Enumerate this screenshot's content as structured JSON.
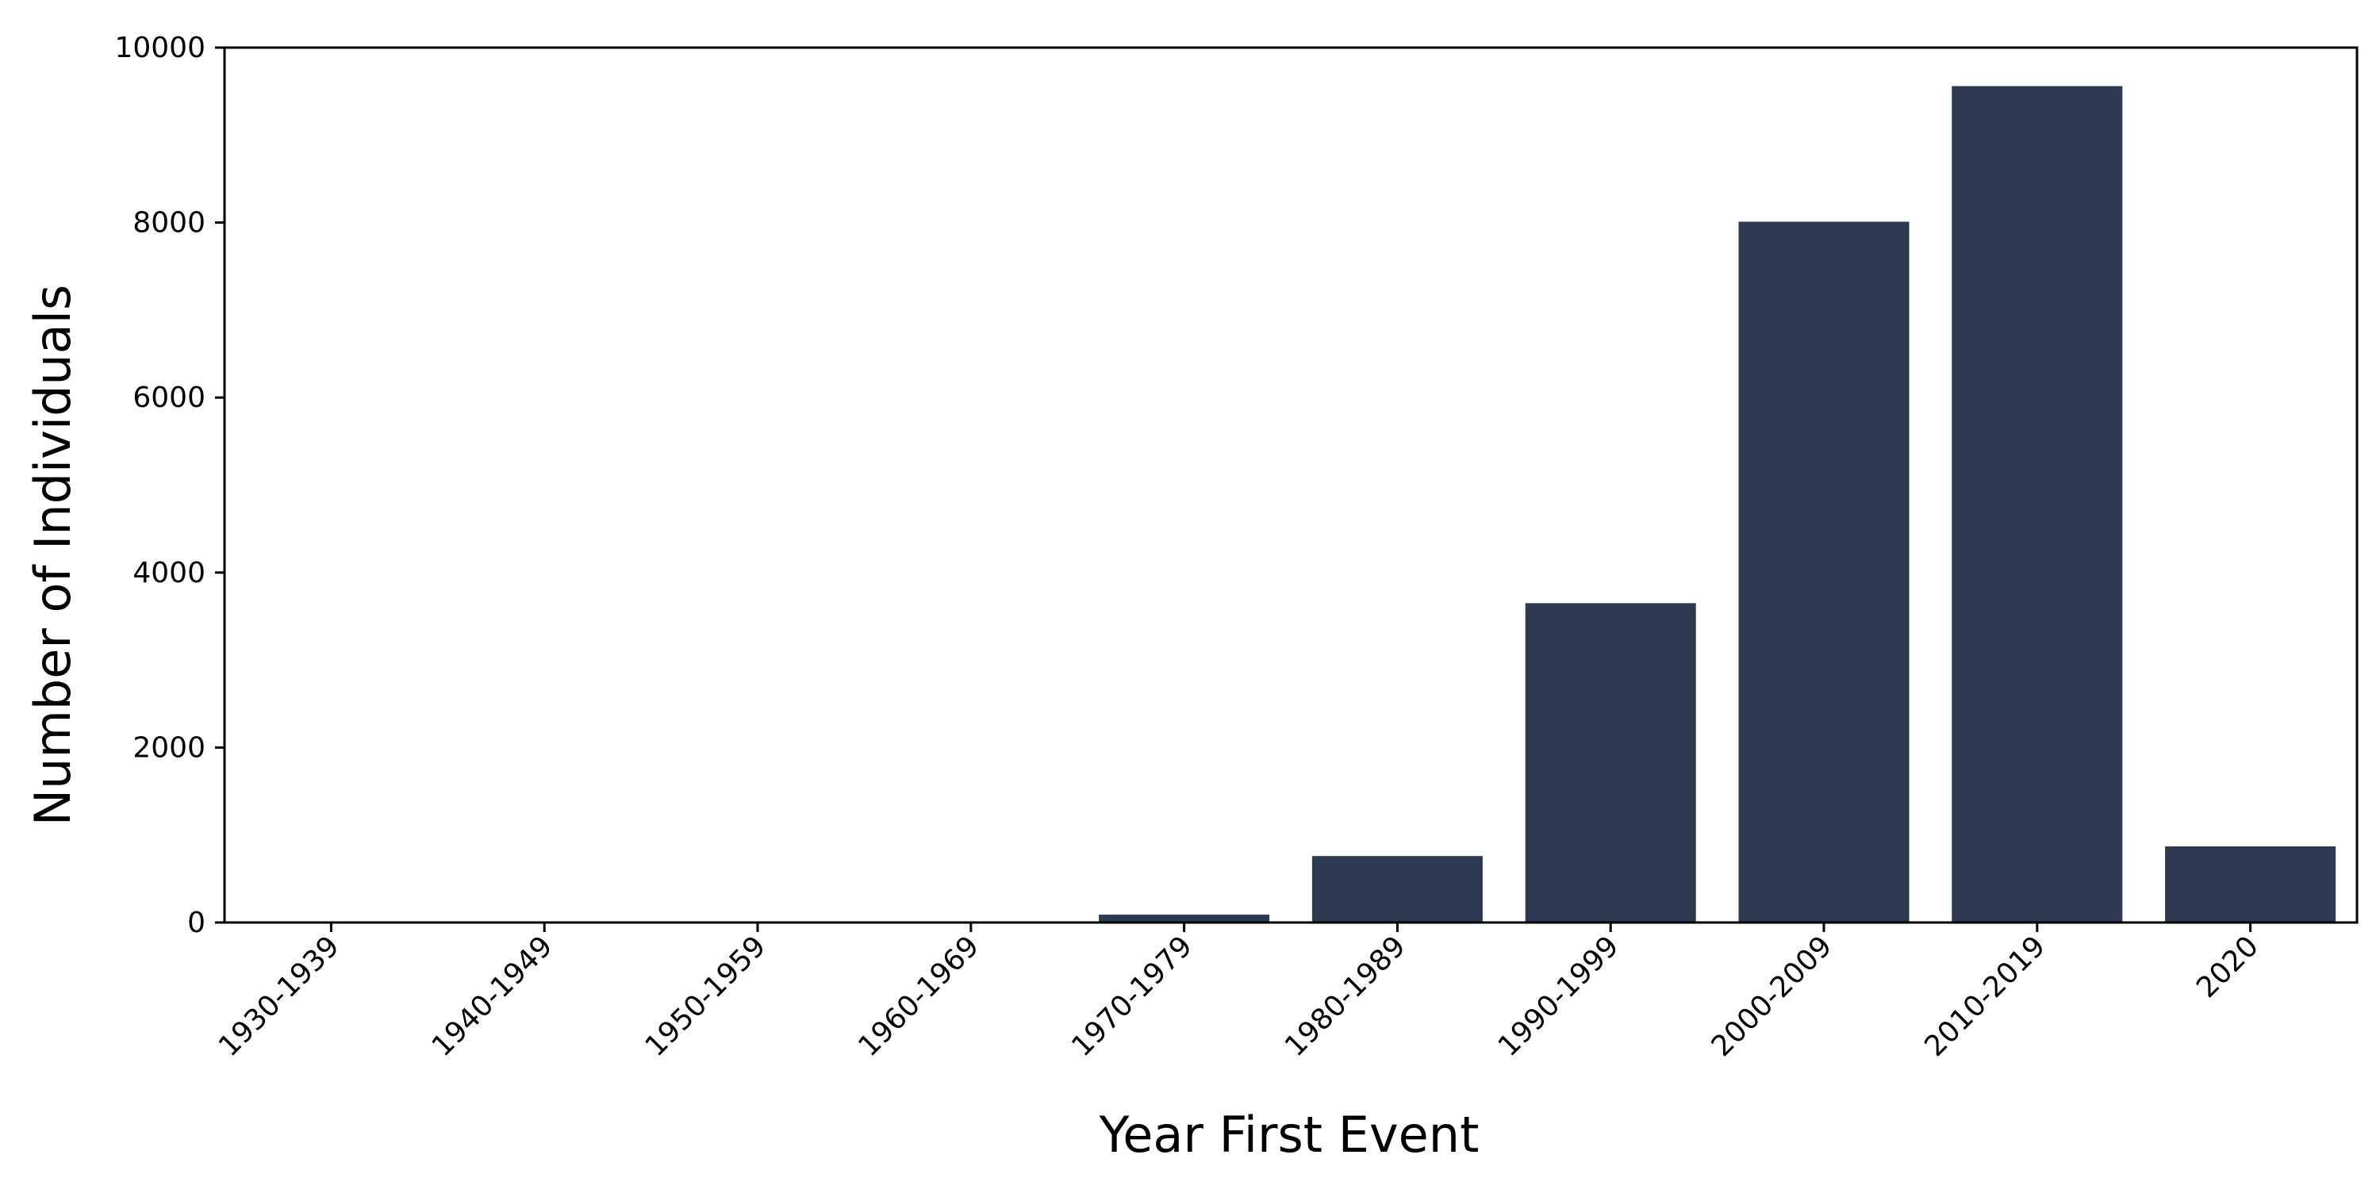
{
  "chart_data": {
    "type": "bar",
    "title": "",
    "xlabel": "Year First Event",
    "ylabel": "Number of Individuals",
    "categories": [
      "1930-1939",
      "1940-1949",
      "1950-1959",
      "1960-1969",
      "1970-1979",
      "1980-1989",
      "1990-1999",
      "2000-2009",
      "2010-2019",
      "2020"
    ],
    "values": [
      2,
      2,
      5,
      10,
      90,
      760,
      3650,
      8010,
      9560,
      870
    ],
    "ylim": [
      0,
      10000
    ],
    "yticks": [
      0,
      2000,
      4000,
      6000,
      8000,
      10000
    ],
    "grid": false,
    "legend": "none",
    "bar_color": "#2d3a52",
    "axis_color": "#000000"
  }
}
